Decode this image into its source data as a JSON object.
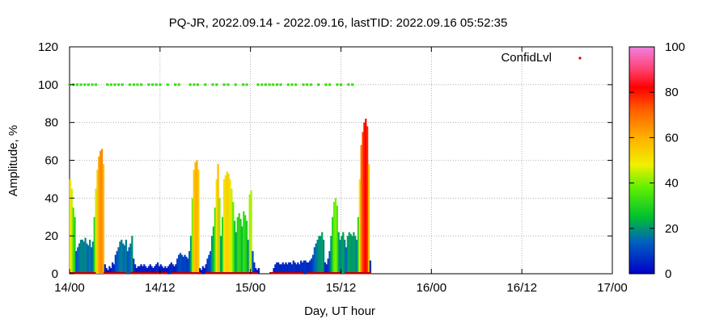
{
  "chart_data": {
    "type": "bar",
    "title": "PQ-JR, 2022.09.14 - 2022.09.16, lastTID: 2022.09.16 05:52:35",
    "xlabel": "Day, UT hour",
    "ylabel": "Amplitude, %",
    "x_unit": "hours since 14/00",
    "xlim": [
      0,
      72
    ],
    "ylim": [
      0,
      120
    ],
    "x_ticks": [
      {
        "value": 0,
        "label": "14/00"
      },
      {
        "value": 12,
        "label": "14/12"
      },
      {
        "value": 24,
        "label": "15/00"
      },
      {
        "value": 36,
        "label": "15/12"
      },
      {
        "value": 48,
        "label": "16/00"
      },
      {
        "value": 60,
        "label": "16/12"
      },
      {
        "value": 72,
        "label": "17/00"
      }
    ],
    "y_ticks": [
      {
        "value": 0,
        "label": "0"
      },
      {
        "value": 20,
        "label": "20"
      },
      {
        "value": 40,
        "label": "40"
      },
      {
        "value": 60,
        "label": "60"
      },
      {
        "value": 80,
        "label": "80"
      },
      {
        "value": 100,
        "label": "100"
      },
      {
        "value": 120,
        "label": "120"
      }
    ],
    "grid": true,
    "legend": {
      "label": "ConfidLvl",
      "placement": "top-right"
    },
    "colorbar": {
      "range": [
        0,
        100
      ],
      "ticks": [
        {
          "value": 0,
          "label": "0"
        },
        {
          "value": 20,
          "label": "20"
        },
        {
          "value": 40,
          "label": "40"
        },
        {
          "value": 60,
          "label": "60"
        },
        {
          "value": 80,
          "label": "80"
        },
        {
          "value": 100,
          "label": "100"
        }
      ]
    },
    "amplitude_series": [
      [
        0.0,
        50
      ],
      [
        0.2,
        45
      ],
      [
        0.4,
        35
      ],
      [
        0.6,
        30
      ],
      [
        0.8,
        12
      ],
      [
        1.0,
        14
      ],
      [
        1.2,
        16
      ],
      [
        1.4,
        18
      ],
      [
        1.6,
        18
      ],
      [
        1.8,
        17
      ],
      [
        2.0,
        19
      ],
      [
        2.2,
        16
      ],
      [
        2.4,
        15
      ],
      [
        2.6,
        18
      ],
      [
        2.8,
        14
      ],
      [
        3.0,
        17
      ],
      [
        3.2,
        30
      ],
      [
        3.4,
        45
      ],
      [
        3.6,
        55
      ],
      [
        3.8,
        62
      ],
      [
        4.0,
        65
      ],
      [
        4.2,
        66
      ],
      [
        4.4,
        58
      ],
      [
        4.6,
        5
      ],
      [
        4.8,
        3
      ],
      [
        5.0,
        2
      ],
      [
        5.2,
        4
      ],
      [
        5.4,
        3
      ],
      [
        5.6,
        6
      ],
      [
        5.8,
        5
      ],
      [
        6.0,
        10
      ],
      [
        6.2,
        12
      ],
      [
        6.4,
        14
      ],
      [
        6.6,
        17
      ],
      [
        6.8,
        18
      ],
      [
        7.0,
        16
      ],
      [
        7.2,
        15
      ],
      [
        7.4,
        18
      ],
      [
        7.6,
        12
      ],
      [
        7.8,
        14
      ],
      [
        8.0,
        16
      ],
      [
        8.2,
        20
      ],
      [
        8.4,
        8
      ],
      [
        8.6,
        5
      ],
      [
        8.8,
        3
      ],
      [
        9.0,
        4
      ],
      [
        9.2,
        4
      ],
      [
        9.4,
        5
      ],
      [
        9.6,
        4
      ],
      [
        9.8,
        5
      ],
      [
        10.0,
        4
      ],
      [
        10.2,
        3
      ],
      [
        10.4,
        4
      ],
      [
        10.6,
        5
      ],
      [
        10.8,
        4
      ],
      [
        11.0,
        3
      ],
      [
        11.2,
        4
      ],
      [
        11.4,
        5
      ],
      [
        11.6,
        6
      ],
      [
        11.8,
        4
      ],
      [
        12.0,
        5
      ],
      [
        12.2,
        4
      ],
      [
        12.4,
        3
      ],
      [
        12.6,
        4
      ],
      [
        12.8,
        3
      ],
      [
        13.0,
        4
      ],
      [
        13.2,
        5
      ],
      [
        13.4,
        6
      ],
      [
        13.6,
        5
      ],
      [
        13.8,
        4
      ],
      [
        14.0,
        5
      ],
      [
        14.2,
        8
      ],
      [
        14.4,
        10
      ],
      [
        14.6,
        11
      ],
      [
        14.8,
        10
      ],
      [
        15.0,
        9
      ],
      [
        15.2,
        10
      ],
      [
        15.4,
        9
      ],
      [
        15.6,
        8
      ],
      [
        15.8,
        12
      ],
      [
        16.0,
        20
      ],
      [
        16.2,
        40
      ],
      [
        16.4,
        55
      ],
      [
        16.6,
        59
      ],
      [
        16.8,
        60
      ],
      [
        17.0,
        55
      ],
      [
        17.2,
        3
      ],
      [
        17.4,
        2
      ],
      [
        17.6,
        4
      ],
      [
        17.8,
        3
      ],
      [
        18.0,
        5
      ],
      [
        18.2,
        8
      ],
      [
        18.4,
        10
      ],
      [
        18.6,
        12
      ],
      [
        18.8,
        20
      ],
      [
        19.0,
        25
      ],
      [
        19.2,
        35
      ],
      [
        19.4,
        50
      ],
      [
        19.6,
        58
      ],
      [
        19.8,
        40
      ],
      [
        20.0,
        20
      ],
      [
        20.2,
        30
      ],
      [
        20.4,
        50
      ],
      [
        20.6,
        52
      ],
      [
        20.8,
        54
      ],
      [
        21.0,
        53
      ],
      [
        21.2,
        50
      ],
      [
        21.4,
        45
      ],
      [
        21.6,
        38
      ],
      [
        21.8,
        28
      ],
      [
        22.0,
        22
      ],
      [
        22.2,
        30
      ],
      [
        22.4,
        32
      ],
      [
        22.6,
        29
      ],
      [
        22.8,
        25
      ],
      [
        23.0,
        33
      ],
      [
        23.2,
        31
      ],
      [
        23.4,
        28
      ],
      [
        23.6,
        18
      ],
      [
        23.8,
        42
      ],
      [
        24.0,
        44
      ],
      [
        24.2,
        12
      ],
      [
        24.4,
        6
      ],
      [
        24.6,
        3
      ],
      [
        24.8,
        2
      ],
      [
        25.0,
        3
      ],
      [
        25.2,
        0
      ],
      [
        25.4,
        0
      ],
      [
        25.6,
        0
      ],
      [
        25.8,
        0
      ],
      [
        26.0,
        0
      ],
      [
        26.2,
        0
      ],
      [
        26.4,
        0
      ],
      [
        26.6,
        0
      ],
      [
        26.8,
        0
      ],
      [
        27.0,
        3
      ],
      [
        27.2,
        5
      ],
      [
        27.4,
        6
      ],
      [
        27.6,
        6
      ],
      [
        27.8,
        5
      ],
      [
        28.0,
        5
      ],
      [
        28.2,
        6
      ],
      [
        28.4,
        5
      ],
      [
        28.6,
        6
      ],
      [
        28.8,
        5
      ],
      [
        29.0,
        6
      ],
      [
        29.2,
        6
      ],
      [
        29.4,
        5
      ],
      [
        29.6,
        7
      ],
      [
        29.8,
        6
      ],
      [
        30.0,
        5
      ],
      [
        30.2,
        6
      ],
      [
        30.4,
        5
      ],
      [
        30.6,
        7
      ],
      [
        30.8,
        6
      ],
      [
        31.0,
        7
      ],
      [
        31.2,
        7
      ],
      [
        31.4,
        6
      ],
      [
        31.6,
        6
      ],
      [
        31.8,
        7
      ],
      [
        32.0,
        8
      ],
      [
        32.2,
        10
      ],
      [
        32.4,
        14
      ],
      [
        32.6,
        16
      ],
      [
        32.8,
        18
      ],
      [
        33.0,
        20
      ],
      [
        33.2,
        20
      ],
      [
        33.4,
        22
      ],
      [
        33.6,
        18
      ],
      [
        33.8,
        6
      ],
      [
        34.0,
        5
      ],
      [
        34.2,
        8
      ],
      [
        34.4,
        12
      ],
      [
        34.6,
        20
      ],
      [
        34.8,
        30
      ],
      [
        35.0,
        38
      ],
      [
        35.2,
        40
      ],
      [
        35.4,
        36
      ],
      [
        35.6,
        22
      ],
      [
        35.8,
        18
      ],
      [
        36.0,
        20
      ],
      [
        36.2,
        22
      ],
      [
        36.4,
        18
      ],
      [
        36.6,
        14
      ],
      [
        36.8,
        20
      ],
      [
        37.0,
        22
      ],
      [
        37.2,
        21
      ],
      [
        37.4,
        20
      ],
      [
        37.6,
        22
      ],
      [
        37.8,
        20
      ],
      [
        38.0,
        18
      ],
      [
        38.2,
        30
      ],
      [
        38.4,
        50
      ],
      [
        38.6,
        68
      ],
      [
        38.8,
        75
      ],
      [
        39.0,
        80
      ],
      [
        39.2,
        82
      ],
      [
        39.4,
        78
      ],
      [
        39.6,
        58
      ],
      [
        39.8,
        7
      ],
      [
        40.0,
        0
      ]
    ],
    "confidence_markers": [
      [
        0.0,
        100
      ],
      [
        0.5,
        100
      ],
      [
        1.0,
        100
      ],
      [
        1.5,
        100
      ],
      [
        2.0,
        100
      ],
      [
        2.5,
        100
      ],
      [
        3.0,
        100
      ],
      [
        3.5,
        100
      ],
      [
        5.0,
        100
      ],
      [
        5.5,
        100
      ],
      [
        6.0,
        100
      ],
      [
        6.5,
        100
      ],
      [
        7.0,
        100
      ],
      [
        8.0,
        100
      ],
      [
        8.5,
        100
      ],
      [
        9.0,
        100
      ],
      [
        9.5,
        100
      ],
      [
        10.5,
        100
      ],
      [
        11.0,
        100
      ],
      [
        11.5,
        100
      ],
      [
        12.0,
        100
      ],
      [
        13.0,
        100
      ],
      [
        14.0,
        100
      ],
      [
        14.5,
        100
      ],
      [
        16.0,
        100
      ],
      [
        16.5,
        100
      ],
      [
        17.0,
        100
      ],
      [
        18.0,
        100
      ],
      [
        19.0,
        100
      ],
      [
        19.5,
        100
      ],
      [
        20.5,
        100
      ],
      [
        21.0,
        100
      ],
      [
        22.0,
        100
      ],
      [
        23.0,
        100
      ],
      [
        23.5,
        100
      ],
      [
        25.0,
        100
      ],
      [
        25.5,
        100
      ],
      [
        26.0,
        100
      ],
      [
        26.5,
        100
      ],
      [
        27.0,
        100
      ],
      [
        27.5,
        100
      ],
      [
        28.0,
        100
      ],
      [
        29.0,
        100
      ],
      [
        29.5,
        100
      ],
      [
        30.0,
        100
      ],
      [
        31.0,
        100
      ],
      [
        31.5,
        100
      ],
      [
        32.0,
        100
      ],
      [
        33.0,
        100
      ],
      [
        34.0,
        100
      ],
      [
        34.5,
        100
      ],
      [
        35.5,
        100
      ],
      [
        36.0,
        100
      ],
      [
        37.0,
        100
      ],
      [
        37.5,
        100
      ]
    ],
    "baseline_marker_spans": [
      [
        0.0,
        3.5
      ],
      [
        4.5,
        7.5
      ],
      [
        8.0,
        13.0
      ],
      [
        13.5,
        17.5
      ],
      [
        18.0,
        25.0
      ],
      [
        26.5,
        31.0
      ],
      [
        31.5,
        36.0
      ],
      [
        36.5,
        40.0
      ]
    ]
  }
}
